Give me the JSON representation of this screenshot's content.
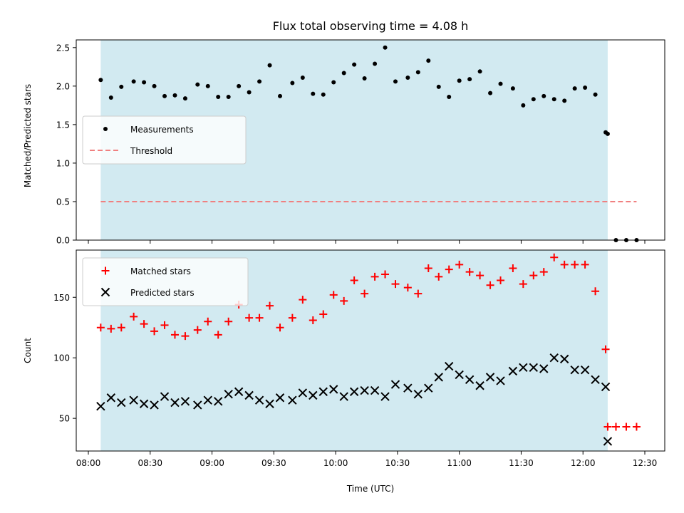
{
  "title": "Flux total observing time = 4.08 h",
  "chart_data": [
    {
      "type": "scatter",
      "ylabel": "Matched/Predicted stars",
      "xlabel": "",
      "xlim": [
        "08:06",
        "12:40"
      ],
      "ylim": [
        0,
        2.6
      ],
      "yticks": [
        0.0,
        0.5,
        1.0,
        1.5,
        2.0,
        2.5
      ],
      "ytick_labels": [
        "0.0",
        "0.5",
        "1.0",
        "1.5",
        "2.0",
        "2.5"
      ],
      "shaded_region": {
        "x_start": "08:06",
        "x_end": "12:12",
        "color": "#add8e6"
      },
      "legend_position": "center-left",
      "series": [
        {
          "name": "Measurements",
          "marker": "dot",
          "color": "#000000",
          "points": [
            [
              "08:06",
              2.08
            ],
            [
              "08:11",
              1.85
            ],
            [
              "08:16",
              1.99
            ],
            [
              "08:22",
              2.06
            ],
            [
              "08:27",
              2.05
            ],
            [
              "08:32",
              2.0
            ],
            [
              "08:37",
              1.87
            ],
            [
              "08:42",
              1.88
            ],
            [
              "08:47",
              1.84
            ],
            [
              "08:53",
              2.02
            ],
            [
              "08:58",
              2.0
            ],
            [
              "09:03",
              1.86
            ],
            [
              "09:08",
              1.86
            ],
            [
              "09:13",
              2.0
            ],
            [
              "09:18",
              1.92
            ],
            [
              "09:23",
              2.06
            ],
            [
              "09:28",
              2.27
            ],
            [
              "09:33",
              1.87
            ],
            [
              "09:39",
              2.04
            ],
            [
              "09:44",
              2.11
            ],
            [
              "09:49",
              1.9
            ],
            [
              "09:54",
              1.89
            ],
            [
              "09:59",
              2.05
            ],
            [
              "10:04",
              2.17
            ],
            [
              "10:09",
              2.28
            ],
            [
              "10:14",
              2.1
            ],
            [
              "10:19",
              2.29
            ],
            [
              "10:24",
              2.5
            ],
            [
              "10:29",
              2.06
            ],
            [
              "10:35",
              2.11
            ],
            [
              "10:40",
              2.18
            ],
            [
              "10:45",
              2.33
            ],
            [
              "10:50",
              1.99
            ],
            [
              "10:55",
              1.86
            ],
            [
              "11:00",
              2.07
            ],
            [
              "11:05",
              2.09
            ],
            [
              "11:10",
              2.19
            ],
            [
              "11:15",
              1.91
            ],
            [
              "11:20",
              2.03
            ],
            [
              "11:26",
              1.97
            ],
            [
              "11:31",
              1.75
            ],
            [
              "11:36",
              1.83
            ],
            [
              "11:41",
              1.87
            ],
            [
              "11:46",
              1.83
            ],
            [
              "11:51",
              1.81
            ],
            [
              "11:56",
              1.97
            ],
            [
              "12:01",
              1.98
            ],
            [
              "12:06",
              1.89
            ],
            [
              "12:11",
              1.4
            ],
            [
              "12:12",
              1.38
            ],
            [
              "12:16",
              0.0
            ],
            [
              "12:21",
              0.0
            ],
            [
              "12:26",
              0.0
            ]
          ]
        },
        {
          "name": "Threshold",
          "marker": "dashed-line",
          "color": "#f08080",
          "points": [
            [
              "08:06",
              0.5
            ],
            [
              "12:26",
              0.5
            ]
          ]
        }
      ]
    },
    {
      "type": "scatter",
      "ylabel": "Count",
      "xlabel": "Time (UTC)",
      "xlim": [
        "08:06",
        "12:40"
      ],
      "ylim": [
        23,
        189
      ],
      "yticks": [
        50,
        100,
        150
      ],
      "ytick_labels": [
        "50",
        "100",
        "150"
      ],
      "xticks": [
        "08:00",
        "08:30",
        "09:00",
        "09:30",
        "10:00",
        "10:30",
        "11:00",
        "11:30",
        "12:00",
        "12:30"
      ],
      "shaded_region": {
        "x_start": "08:06",
        "x_end": "12:12",
        "color": "#add8e6"
      },
      "legend_position": "top-left",
      "series": [
        {
          "name": "Matched stars",
          "marker": "plus",
          "color": "#ff0000",
          "points": [
            [
              "08:06",
              125
            ],
            [
              "08:11",
              124
            ],
            [
              "08:16",
              125
            ],
            [
              "08:22",
              134
            ],
            [
              "08:27",
              128
            ],
            [
              "08:32",
              122
            ],
            [
              "08:37",
              127
            ],
            [
              "08:42",
              119
            ],
            [
              "08:47",
              118
            ],
            [
              "08:53",
              123
            ],
            [
              "08:58",
              130
            ],
            [
              "09:03",
              119
            ],
            [
              "09:08",
              130
            ],
            [
              "09:13",
              144
            ],
            [
              "09:18",
              133
            ],
            [
              "09:23",
              133
            ],
            [
              "09:28",
              143
            ],
            [
              "09:33",
              125
            ],
            [
              "09:39",
              133
            ],
            [
              "09:44",
              148
            ],
            [
              "09:49",
              131
            ],
            [
              "09:54",
              136
            ],
            [
              "09:59",
              152
            ],
            [
              "10:04",
              147
            ],
            [
              "10:09",
              164
            ],
            [
              "10:14",
              153
            ],
            [
              "10:19",
              167
            ],
            [
              "10:24",
              169
            ],
            [
              "10:29",
              161
            ],
            [
              "10:35",
              158
            ],
            [
              "10:40",
              153
            ],
            [
              "10:45",
              174
            ],
            [
              "10:50",
              167
            ],
            [
              "10:55",
              173
            ],
            [
              "11:00",
              177
            ],
            [
              "11:05",
              171
            ],
            [
              "11:10",
              168
            ],
            [
              "11:15",
              160
            ],
            [
              "11:20",
              164
            ],
            [
              "11:26",
              174
            ],
            [
              "11:31",
              161
            ],
            [
              "11:36",
              168
            ],
            [
              "11:41",
              171
            ],
            [
              "11:46",
              183
            ],
            [
              "11:51",
              177
            ],
            [
              "11:56",
              177
            ],
            [
              "12:01",
              177
            ],
            [
              "12:06",
              155
            ],
            [
              "12:11",
              107
            ],
            [
              "12:12",
              43
            ],
            [
              "12:16",
              43
            ],
            [
              "12:21",
              43
            ],
            [
              "12:26",
              43
            ]
          ]
        },
        {
          "name": "Predicted stars",
          "marker": "x",
          "color": "#000000",
          "points": [
            [
              "08:06",
              60
            ],
            [
              "08:11",
              67
            ],
            [
              "08:16",
              63
            ],
            [
              "08:22",
              65
            ],
            [
              "08:27",
              62
            ],
            [
              "08:32",
              61
            ],
            [
              "08:37",
              68
            ],
            [
              "08:42",
              63
            ],
            [
              "08:47",
              64
            ],
            [
              "08:53",
              61
            ],
            [
              "08:58",
              65
            ],
            [
              "09:03",
              64
            ],
            [
              "09:08",
              70
            ],
            [
              "09:13",
              72
            ],
            [
              "09:18",
              69
            ],
            [
              "09:23",
              65
            ],
            [
              "09:28",
              62
            ],
            [
              "09:33",
              67
            ],
            [
              "09:39",
              65
            ],
            [
              "09:44",
              71
            ],
            [
              "09:49",
              69
            ],
            [
              "09:54",
              72
            ],
            [
              "09:59",
              74
            ],
            [
              "10:04",
              68
            ],
            [
              "10:09",
              72
            ],
            [
              "10:14",
              73
            ],
            [
              "10:19",
              73
            ],
            [
              "10:24",
              68
            ],
            [
              "10:29",
              78
            ],
            [
              "10:35",
              75
            ],
            [
              "10:40",
              70
            ],
            [
              "10:45",
              75
            ],
            [
              "10:50",
              84
            ],
            [
              "10:55",
              93
            ],
            [
              "11:00",
              86
            ],
            [
              "11:05",
              82
            ],
            [
              "11:10",
              77
            ],
            [
              "11:15",
              84
            ],
            [
              "11:20",
              81
            ],
            [
              "11:26",
              89
            ],
            [
              "11:31",
              92
            ],
            [
              "11:36",
              92
            ],
            [
              "11:41",
              91
            ],
            [
              "11:46",
              100
            ],
            [
              "11:51",
              99
            ],
            [
              "11:56",
              90
            ],
            [
              "12:01",
              90
            ],
            [
              "12:06",
              82
            ],
            [
              "12:11",
              76
            ],
            [
              "12:12",
              31
            ]
          ]
        }
      ]
    }
  ]
}
